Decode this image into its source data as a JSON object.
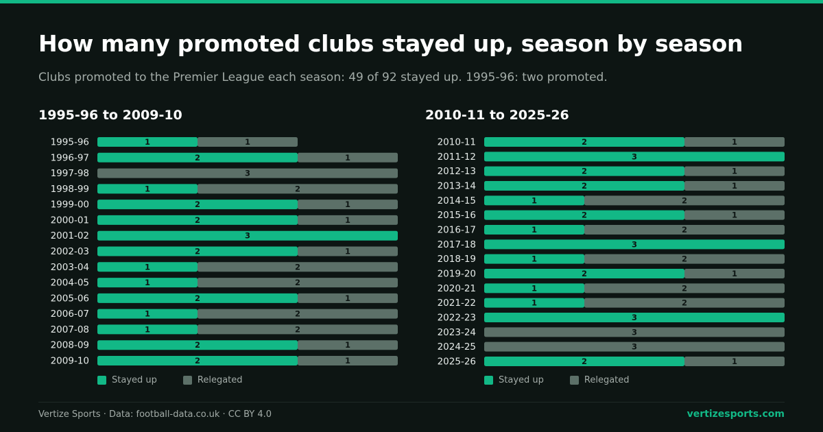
{
  "title": "How many promoted clubs stayed up, season by season",
  "subtitle": "Clubs promoted to the Premier League each season: 49 of 92 stayed up. 1995-96: two promoted.",
  "colors": {
    "accent": "#12b886",
    "stayed_up": "#12b886",
    "relegated": "#5c7068",
    "background": "#0d1513"
  },
  "legend": {
    "stayed_up": "Stayed up",
    "relegated": "Relegated"
  },
  "footer": {
    "credit": "Vertize Sports · Data: football-data.co.uk · CC BY 4.0",
    "site": "vertizesports.com"
  },
  "chart_data": [
    {
      "type": "bar",
      "stacked": true,
      "orientation": "horizontal",
      "title": "1995-96 to 2009-10",
      "x_max": 3,
      "categories": [
        "1995-96",
        "1996-97",
        "1997-98",
        "1998-99",
        "1999-00",
        "2000-01",
        "2001-02",
        "2002-03",
        "2003-04",
        "2004-05",
        "2005-06",
        "2006-07",
        "2007-08",
        "2008-09",
        "2009-10"
      ],
      "series": [
        {
          "name": "Stayed up",
          "values": [
            1,
            2,
            0,
            1,
            2,
            2,
            3,
            2,
            1,
            1,
            2,
            1,
            1,
            2,
            2
          ]
        },
        {
          "name": "Relegated",
          "values": [
            1,
            1,
            3,
            2,
            1,
            1,
            0,
            1,
            2,
            2,
            1,
            2,
            2,
            1,
            1
          ]
        }
      ]
    },
    {
      "type": "bar",
      "stacked": true,
      "orientation": "horizontal",
      "title": "2010-11 to 2025-26",
      "x_max": 3,
      "categories": [
        "2010-11",
        "2011-12",
        "2012-13",
        "2013-14",
        "2014-15",
        "2015-16",
        "2016-17",
        "2017-18",
        "2018-19",
        "2019-20",
        "2020-21",
        "2021-22",
        "2022-23",
        "2023-24",
        "2024-25",
        "2025-26"
      ],
      "series": [
        {
          "name": "Stayed up",
          "values": [
            2,
            3,
            2,
            2,
            1,
            2,
            1,
            3,
            1,
            2,
            1,
            1,
            3,
            0,
            0,
            2
          ]
        },
        {
          "name": "Relegated",
          "values": [
            1,
            0,
            1,
            1,
            2,
            1,
            2,
            0,
            2,
            1,
            2,
            2,
            0,
            3,
            3,
            1
          ]
        }
      ]
    }
  ]
}
